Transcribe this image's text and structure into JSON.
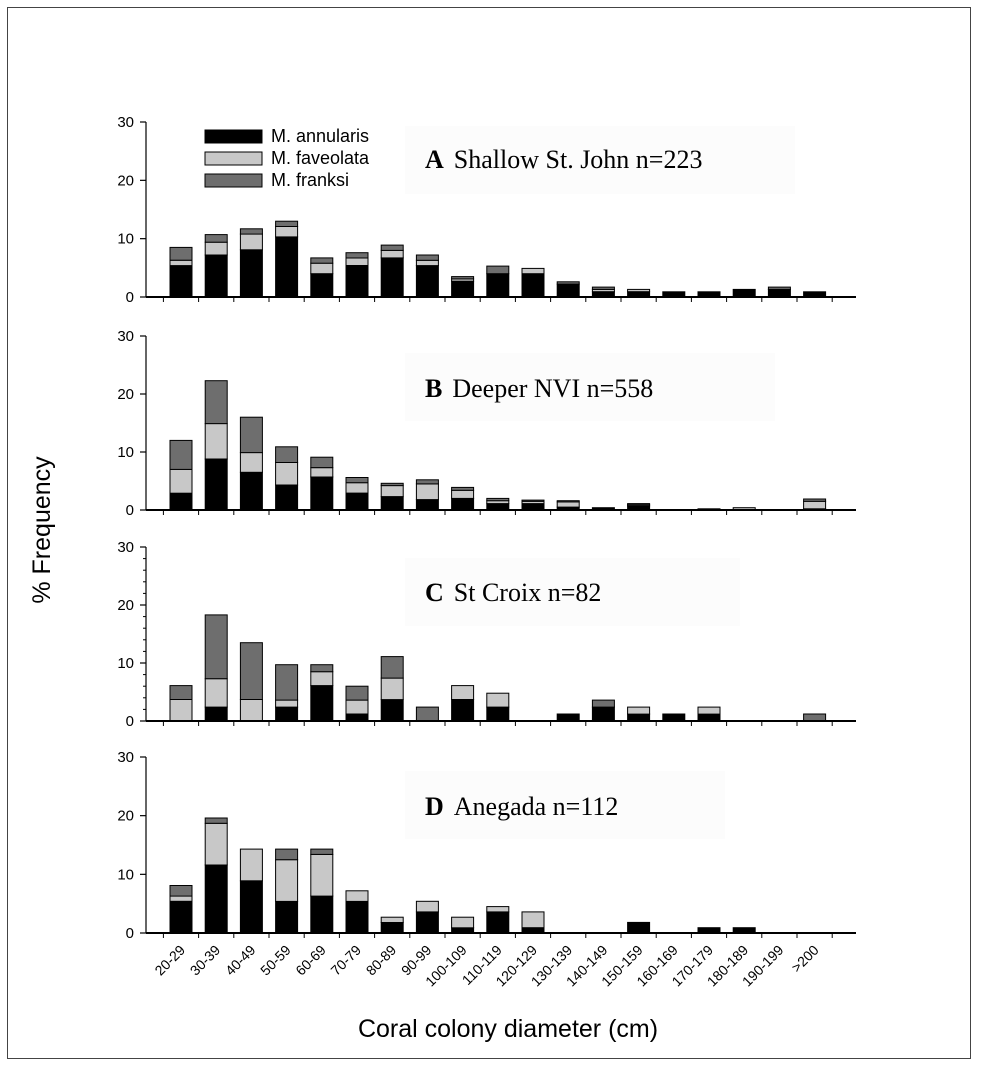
{
  "chart_data": {
    "type": "bar",
    "stacked": true,
    "ylabel": "% Frequency",
    "xlabel": "Coral colony diameter (cm)",
    "ylim": [
      0,
      30
    ],
    "yticks": [
      0,
      10,
      20,
      30
    ],
    "categories": [
      "20-29",
      "30-39",
      "40-49",
      "50-59",
      "60-69",
      "70-79",
      "80-89",
      "90-99",
      "100-109",
      "110-119",
      "120-129",
      "130-139",
      "140-149",
      "150-159",
      "160-169",
      "170-179",
      "180-189",
      "190-199",
      ">200"
    ],
    "legend": {
      "placement": "top-left of panel A",
      "entries": [
        {
          "name": "M. annularis",
          "color": "#000000"
        },
        {
          "name": "M. faveolata",
          "color": "#c8c8c8"
        },
        {
          "name": "M. franksi",
          "color": "#6e6e6e"
        }
      ]
    },
    "panels": [
      {
        "letter": "A",
        "title": "Shallow St. John n=223",
        "series": [
          {
            "name": "M. annularis",
            "values": [
              5.4,
              7.2,
              8.1,
              10.3,
              4.0,
              5.4,
              6.7,
              5.4,
              2.7,
              4.0,
              4.0,
              2.2,
              0.9,
              0.9,
              0.9,
              0.9,
              1.3,
              1.3,
              0.9
            ]
          },
          {
            "name": "M. faveolata",
            "values": [
              0.9,
              2.2,
              2.7,
              1.8,
              1.8,
              1.3,
              1.3,
              0.9,
              0.4,
              0.0,
              0.9,
              0.0,
              0.4,
              0.4,
              0.0,
              0.0,
              0.0,
              0.0,
              0.0
            ]
          },
          {
            "name": "M. franksi",
            "values": [
              2.2,
              1.3,
              0.9,
              0.9,
              0.9,
              0.9,
              0.9,
              0.9,
              0.4,
              1.3,
              0.0,
              0.4,
              0.4,
              0.0,
              0.0,
              0.0,
              0.0,
              0.4,
              0.0
            ]
          }
        ]
      },
      {
        "letter": "B",
        "title": "Deeper NVI   n=558",
        "series": [
          {
            "name": "M. annularis",
            "values": [
              2.9,
              8.8,
              6.5,
              4.3,
              5.7,
              2.9,
              2.3,
              1.8,
              2.0,
              1.1,
              1.1,
              0.5,
              0.4,
              0.7,
              0.0,
              0.2,
              0.0,
              0.0,
              0.2
            ]
          },
          {
            "name": "M. faveolata",
            "values": [
              4.1,
              6.1,
              3.4,
              3.9,
              1.6,
              1.8,
              1.9,
              2.7,
              1.4,
              0.5,
              0.4,
              0.9,
              0.0,
              0.2,
              0.0,
              0.0,
              0.4,
              0.0,
              1.3
            ]
          },
          {
            "name": "M. franksi",
            "values": [
              5.0,
              7.4,
              6.1,
              2.7,
              1.8,
              0.9,
              0.4,
              0.7,
              0.5,
              0.4,
              0.2,
              0.2,
              0.0,
              0.2,
              0.0,
              0.0,
              0.0,
              0.0,
              0.4
            ]
          }
        ]
      },
      {
        "letter": "C",
        "title": "St Croix    n=82",
        "series": [
          {
            "name": "M. annularis",
            "values": [
              0.0,
              2.4,
              0.0,
              2.4,
              6.1,
              1.2,
              3.7,
              0.0,
              3.7,
              2.4,
              0.0,
              1.2,
              2.4,
              1.2,
              1.2,
              1.2,
              0.0,
              0.0,
              0.0
            ]
          },
          {
            "name": "M. faveolata",
            "values": [
              3.7,
              4.9,
              3.7,
              1.2,
              2.4,
              2.4,
              3.7,
              0.0,
              2.4,
              2.4,
              0.0,
              0.0,
              0.0,
              1.2,
              0.0,
              1.2,
              0.0,
              0.0,
              0.0
            ]
          },
          {
            "name": "M. franksi",
            "values": [
              2.4,
              11.0,
              9.8,
              6.1,
              1.2,
              2.4,
              3.7,
              2.4,
              0.0,
              0.0,
              0.0,
              0.0,
              1.2,
              0.0,
              0.0,
              0.0,
              0.0,
              0.0,
              1.2
            ]
          }
        ]
      },
      {
        "letter": "D",
        "title": "Anegada    n=112",
        "series": [
          {
            "name": "M. annularis",
            "values": [
              5.4,
              11.6,
              8.9,
              5.4,
              6.3,
              5.4,
              1.8,
              3.6,
              0.9,
              3.6,
              0.9,
              0.0,
              0.0,
              1.8,
              0.0,
              0.9,
              0.9,
              0.0,
              0.0
            ]
          },
          {
            "name": "M. faveolata",
            "values": [
              0.9,
              7.1,
              5.4,
              7.1,
              7.1,
              1.8,
              0.9,
              1.8,
              1.8,
              0.9,
              2.7,
              0.0,
              0.0,
              0.0,
              0.0,
              0.0,
              0.0,
              0.0,
              0.0
            ]
          },
          {
            "name": "M. franksi",
            "values": [
              1.8,
              0.9,
              0.0,
              1.8,
              0.9,
              0.0,
              0.0,
              0.0,
              0.0,
              0.0,
              0.0,
              0.0,
              0.0,
              0.0,
              0.0,
              0.0,
              0.0,
              0.0,
              0.0
            ]
          }
        ]
      }
    ]
  }
}
